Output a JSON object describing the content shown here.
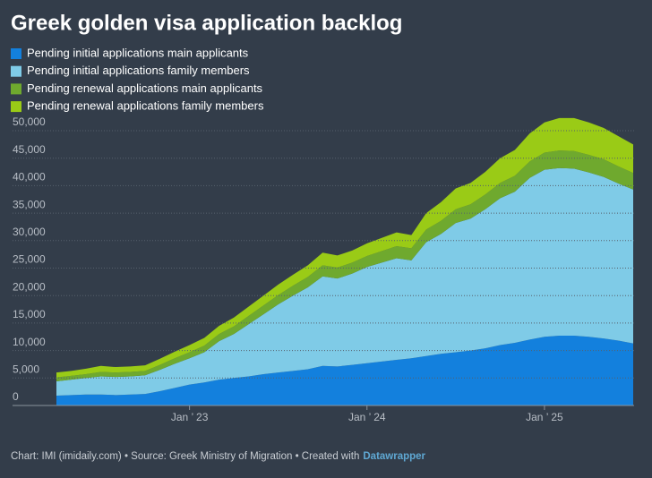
{
  "chart_data": {
    "type": "stacked-area",
    "title": "Greek golden visa application backlog",
    "footer": {
      "text": "Chart: IMI (imidaily.com) • Source: Greek Ministry of Migration • Created with",
      "brand": "Datawrapper"
    },
    "categories": [
      null,
      null,
      null,
      null,
      null,
      null,
      null,
      null,
      null,
      "Jan ’ 23",
      null,
      null,
      null,
      null,
      null,
      null,
      null,
      null,
      null,
      null,
      null,
      "Jan ’ 24",
      null,
      null,
      null,
      null,
      null,
      null,
      null,
      null,
      null,
      null,
      null,
      "Jan ’ 25",
      null,
      null,
      null,
      null,
      null,
      null
    ],
    "series": [
      {
        "name": "Pending initial applications main applicants",
        "color": "#1380dd",
        "values": [
          1800,
          1900,
          2000,
          2000,
          1900,
          2000,
          2100,
          2600,
          3200,
          3800,
          4200,
          4700,
          5000,
          5300,
          5700,
          6000,
          6300,
          6600,
          7200,
          7100,
          7400,
          7700,
          8000,
          8300,
          8600,
          9000,
          9400,
          9700,
          10000,
          10400,
          11000,
          11400,
          12000,
          12500,
          12700,
          12700,
          12500,
          12200,
          11800,
          11300
        ]
      },
      {
        "name": "Pending initial applications family members",
        "color": "#7fcbe7",
        "values": [
          2600,
          2800,
          3000,
          3300,
          3300,
          3300,
          3400,
          3900,
          4400,
          4800,
          5500,
          7000,
          8000,
          9500,
          10900,
          12400,
          13700,
          14900,
          16300,
          16000,
          16600,
          17500,
          18000,
          18500,
          17800,
          20700,
          21800,
          23500,
          24000,
          25300,
          26700,
          27500,
          29400,
          30400,
          30500,
          30400,
          29900,
          29400,
          28600,
          28000
        ]
      },
      {
        "name": "Pending renewal applications main applicants",
        "color": "#6fa92e",
        "values": [
          700,
          700,
          700,
          800,
          800,
          800,
          800,
          900,
          1000,
          1100,
          1200,
          1300,
          1400,
          1500,
          1600,
          1700,
          1800,
          1900,
          2000,
          2000,
          2000,
          2000,
          2100,
          2200,
          2200,
          2300,
          2400,
          2500,
          2600,
          2700,
          2800,
          2900,
          3000,
          3100,
          3200,
          3200,
          3200,
          3200,
          3100,
          3000
        ]
      },
      {
        "name": "Pending renewal applications family members",
        "color": "#9acb16",
        "values": [
          900,
          900,
          1000,
          1100,
          1000,
          1000,
          1000,
          1100,
          1200,
          1300,
          1400,
          1500,
          1600,
          1700,
          1800,
          1900,
          2000,
          2100,
          2300,
          2200,
          2200,
          2300,
          2400,
          2500,
          2400,
          3000,
          3400,
          3800,
          3900,
          4100,
          4500,
          4700,
          5100,
          5500,
          5900,
          6000,
          5900,
          5700,
          5500,
          5200
        ]
      }
    ],
    "ylim": [
      0,
      50000
    ],
    "yticks": [
      0,
      {
        "value": 5000,
        "label": "5,000"
      },
      {
        "value": 10000,
        "label": "10,000"
      },
      {
        "value": 15000,
        "label": "15,000"
      },
      {
        "value": 20000,
        "label": "20,000"
      },
      {
        "value": 25000,
        "label": "25,000"
      },
      {
        "value": 30000,
        "label": "30,000"
      },
      {
        "value": 35000,
        "label": "35,000"
      },
      {
        "value": 40000,
        "label": "40,000"
      },
      {
        "value": 45000,
        "label": "45,000"
      },
      {
        "value": 50000,
        "label": "50,000"
      }
    ],
    "grid": true
  }
}
